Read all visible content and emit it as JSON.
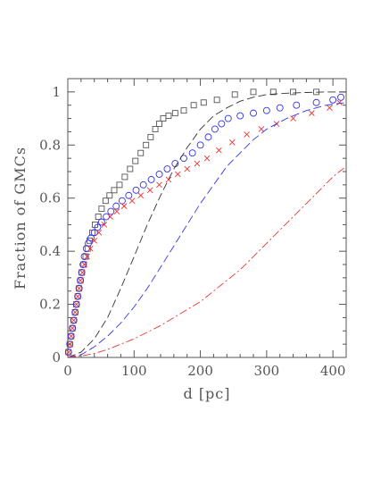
{
  "chart_data": {
    "type": "scatter",
    "title": "",
    "xlabel": "d [pc]",
    "ylabel": "Fraction of GMCs",
    "xlim": [
      0,
      420
    ],
    "ylim": [
      0,
      1.05
    ],
    "x_ticks": [
      0,
      100,
      200,
      300,
      400
    ],
    "y_ticks": [
      0,
      0.2,
      0.4,
      0.6,
      0.8,
      1
    ],
    "x_tick_labels": [
      "0",
      "100",
      "200",
      "300",
      "400"
    ],
    "y_tick_labels": [
      "0",
      "0.2",
      "0.4",
      "0.6",
      "0.8",
      "1"
    ],
    "grid": false,
    "legend": "none",
    "series": [
      {
        "marker": "square",
        "color": "#555555",
        "x": [
          1,
          3,
          5,
          7,
          9,
          11,
          13,
          15,
          17,
          19,
          21,
          24,
          27,
          30,
          33,
          37,
          41,
          46,
          51,
          57,
          63,
          70,
          78,
          86,
          94,
          102,
          110,
          118,
          125,
          132,
          138,
          144,
          152,
          162,
          175,
          190,
          205,
          225,
          252,
          280,
          310,
          340,
          375
        ],
        "y": [
          0.02,
          0.05,
          0.08,
          0.11,
          0.14,
          0.17,
          0.2,
          0.23,
          0.26,
          0.29,
          0.32,
          0.35,
          0.38,
          0.41,
          0.44,
          0.47,
          0.5,
          0.53,
          0.56,
          0.59,
          0.61,
          0.63,
          0.65,
          0.68,
          0.71,
          0.74,
          0.77,
          0.8,
          0.83,
          0.86,
          0.88,
          0.9,
          0.91,
          0.92,
          0.93,
          0.95,
          0.96,
          0.97,
          0.99,
          1.0,
          1.0,
          1.0,
          1.0
        ]
      },
      {
        "marker": "circle",
        "color": "#3333ee",
        "x": [
          1,
          3,
          5,
          7,
          9,
          11,
          13,
          15,
          17,
          19,
          21,
          23,
          25,
          28,
          31,
          35,
          40,
          45,
          51,
          58,
          65,
          73,
          82,
          92,
          103,
          114,
          126,
          138,
          150,
          162,
          175,
          188,
          200,
          212,
          222,
          232,
          242,
          260,
          280,
          300,
          320,
          345,
          375,
          400,
          412
        ],
        "y": [
          0.02,
          0.05,
          0.08,
          0.11,
          0.14,
          0.17,
          0.2,
          0.23,
          0.26,
          0.29,
          0.32,
          0.35,
          0.38,
          0.41,
          0.43,
          0.45,
          0.47,
          0.49,
          0.51,
          0.53,
          0.55,
          0.57,
          0.59,
          0.61,
          0.63,
          0.65,
          0.67,
          0.69,
          0.71,
          0.73,
          0.75,
          0.77,
          0.8,
          0.83,
          0.86,
          0.88,
          0.9,
          0.91,
          0.92,
          0.93,
          0.94,
          0.95,
          0.96,
          0.97,
          0.98
        ]
      },
      {
        "marker": "cross",
        "color": "#ee3333",
        "x": [
          1,
          3,
          5,
          7,
          9,
          11,
          13,
          15,
          17,
          19,
          22,
          25,
          29,
          34,
          40,
          47,
          55,
          64,
          74,
          85,
          97,
          110,
          124,
          138,
          152,
          166,
          180,
          195,
          210,
          228,
          248,
          270,
          292,
          315,
          340,
          368,
          395,
          410
        ],
        "y": [
          0.02,
          0.05,
          0.08,
          0.11,
          0.14,
          0.17,
          0.2,
          0.23,
          0.26,
          0.29,
          0.32,
          0.35,
          0.38,
          0.41,
          0.44,
          0.47,
          0.5,
          0.53,
          0.55,
          0.57,
          0.59,
          0.61,
          0.63,
          0.65,
          0.67,
          0.69,
          0.71,
          0.73,
          0.75,
          0.78,
          0.81,
          0.84,
          0.86,
          0.88,
          0.9,
          0.92,
          0.94,
          0.96
        ]
      },
      {
        "marker": "dashed-line",
        "color": "#333333",
        "x": [
          0,
          20,
          40,
          60,
          80,
          100,
          120,
          140,
          160,
          180,
          200,
          220,
          240,
          260,
          280,
          300,
          330,
          360,
          390,
          420
        ],
        "y": [
          0,
          0.02,
          0.07,
          0.15,
          0.26,
          0.38,
          0.5,
          0.61,
          0.71,
          0.79,
          0.86,
          0.91,
          0.94,
          0.965,
          0.98,
          0.99,
          0.995,
          0.998,
          1.0,
          1.0
        ]
      },
      {
        "marker": "dashed-line",
        "color": "#3333ee",
        "x": [
          0,
          20,
          40,
          60,
          80,
          100,
          120,
          140,
          160,
          180,
          200,
          220,
          240,
          260,
          280,
          300,
          330,
          360,
          390,
          420
        ],
        "y": [
          0,
          0.01,
          0.04,
          0.08,
          0.13,
          0.19,
          0.26,
          0.34,
          0.42,
          0.5,
          0.58,
          0.65,
          0.72,
          0.77,
          0.82,
          0.86,
          0.9,
          0.93,
          0.95,
          0.96
        ]
      },
      {
        "marker": "dash-dot-line",
        "color": "#ee3333",
        "x": [
          0,
          20,
          40,
          60,
          80,
          100,
          120,
          140,
          160,
          180,
          200,
          220,
          240,
          260,
          280,
          300,
          320,
          340,
          360,
          380,
          400,
          420
        ],
        "y": [
          0,
          0.005,
          0.015,
          0.03,
          0.05,
          0.07,
          0.095,
          0.12,
          0.15,
          0.18,
          0.21,
          0.25,
          0.29,
          0.33,
          0.38,
          0.43,
          0.48,
          0.53,
          0.58,
          0.63,
          0.68,
          0.72
        ]
      }
    ]
  }
}
